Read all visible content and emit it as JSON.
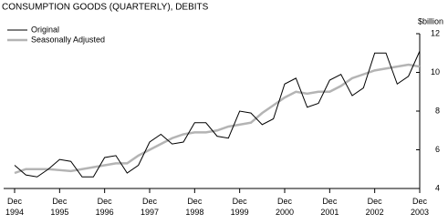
{
  "chart_data": {
    "type": "line",
    "title": "CONSUMPTION GOODS (QUARTERLY), DEBITS",
    "y_axis_label": "$billion",
    "categories": [
      "Dec 1994",
      null,
      null,
      null,
      "Dec 1995",
      null,
      null,
      null,
      "Dec 1996",
      null,
      null,
      null,
      "Dec 1997",
      null,
      null,
      null,
      "Dec 1998",
      null,
      null,
      null,
      "Dec 1999",
      null,
      null,
      null,
      "Dec 2000",
      null,
      null,
      null,
      "Dec 2001",
      null,
      null,
      null,
      "Dec 2002",
      null,
      null,
      null,
      "Dec 2003"
    ],
    "series": [
      {
        "name": "Original",
        "color": "#000000",
        "values": [
          5.2,
          4.7,
          4.6,
          5.0,
          5.5,
          5.4,
          4.6,
          4.6,
          5.6,
          5.7,
          4.8,
          5.2,
          6.4,
          6.8,
          6.3,
          6.4,
          7.4,
          7.4,
          6.7,
          6.6,
          8.0,
          7.9,
          7.3,
          7.6,
          9.4,
          9.7,
          8.2,
          8.4,
          9.6,
          9.9,
          8.8,
          9.2,
          11.0,
          11.0,
          9.4,
          9.8,
          11.1
        ]
      },
      {
        "name": "Seasonally Adjusted",
        "color": "#b4b4b4",
        "values": [
          4.8,
          5.0,
          5.0,
          5.0,
          4.95,
          4.9,
          5.0,
          5.1,
          5.2,
          5.3,
          5.3,
          5.7,
          6.0,
          6.3,
          6.6,
          6.8,
          6.9,
          6.9,
          7.0,
          7.2,
          7.3,
          7.4,
          7.9,
          8.3,
          8.7,
          9.0,
          8.9,
          9.0,
          9.0,
          9.3,
          9.7,
          9.9,
          10.1,
          10.2,
          10.3,
          10.4,
          10.3
        ]
      }
    ],
    "ylim": [
      4,
      12
    ],
    "yticks": [
      4,
      6,
      8,
      10,
      12
    ],
    "y_axis_side": "right",
    "legend": "top-left"
  }
}
